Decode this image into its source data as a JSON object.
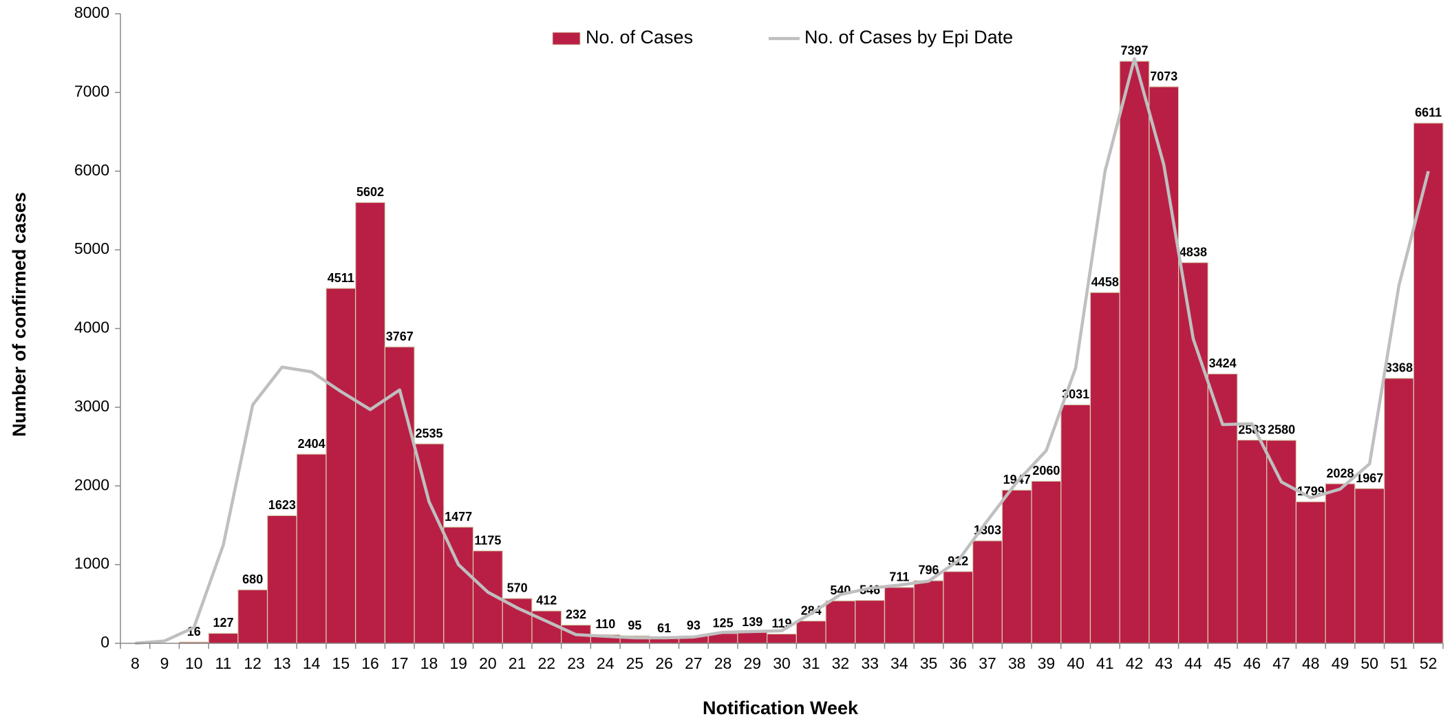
{
  "chart_data": {
    "type": "bar",
    "x_label": "Notification Week",
    "y_label": "Number of confirmed cases",
    "categories": [
      "8",
      "9",
      "10",
      "11",
      "12",
      "13",
      "14",
      "15",
      "16",
      "17",
      "18",
      "19",
      "20",
      "21",
      "22",
      "23",
      "24",
      "25",
      "26",
      "27",
      "28",
      "29",
      "30",
      "31",
      "32",
      "33",
      "34",
      "35",
      "36",
      "37",
      "38",
      "39",
      "40",
      "41",
      "42",
      "43",
      "44",
      "45",
      "46",
      "47",
      "48",
      "49",
      "50",
      "51",
      "52"
    ],
    "series": [
      {
        "name": "No. of Cases",
        "type": "bar",
        "color": "#b91f45",
        "values": [
          null,
          null,
          16,
          127,
          680,
          1623,
          2404,
          4511,
          5602,
          3767,
          2535,
          1477,
          1175,
          570,
          412,
          232,
          110,
          95,
          61,
          93,
          125,
          139,
          119,
          284,
          540,
          546,
          711,
          796,
          912,
          1303,
          1947,
          2060,
          3031,
          4458,
          7397,
          7073,
          4838,
          3424,
          2583,
          2580,
          1799,
          2028,
          1967,
          3368,
          6611
        ]
      },
      {
        "name": "No. of Cases by Epi Date",
        "type": "line",
        "color": "#bfbfbf",
        "values": [
          0,
          30,
          200,
          1250,
          3030,
          3510,
          3450,
          3200,
          2970,
          3220,
          1800,
          1000,
          650,
          450,
          280,
          110,
          90,
          70,
          70,
          80,
          140,
          150,
          160,
          380,
          620,
          700,
          740,
          790,
          1050,
          1560,
          2050,
          2450,
          3500,
          6000,
          7430,
          6080,
          3870,
          2780,
          2790,
          2050,
          1850,
          1960,
          2280,
          4550,
          6000
        ]
      }
    ],
    "ylim": [
      0,
      8000
    ],
    "yticks": [
      0,
      1000,
      2000,
      3000,
      4000,
      5000,
      6000,
      7000,
      8000
    ],
    "grid": false,
    "legend": "top"
  }
}
